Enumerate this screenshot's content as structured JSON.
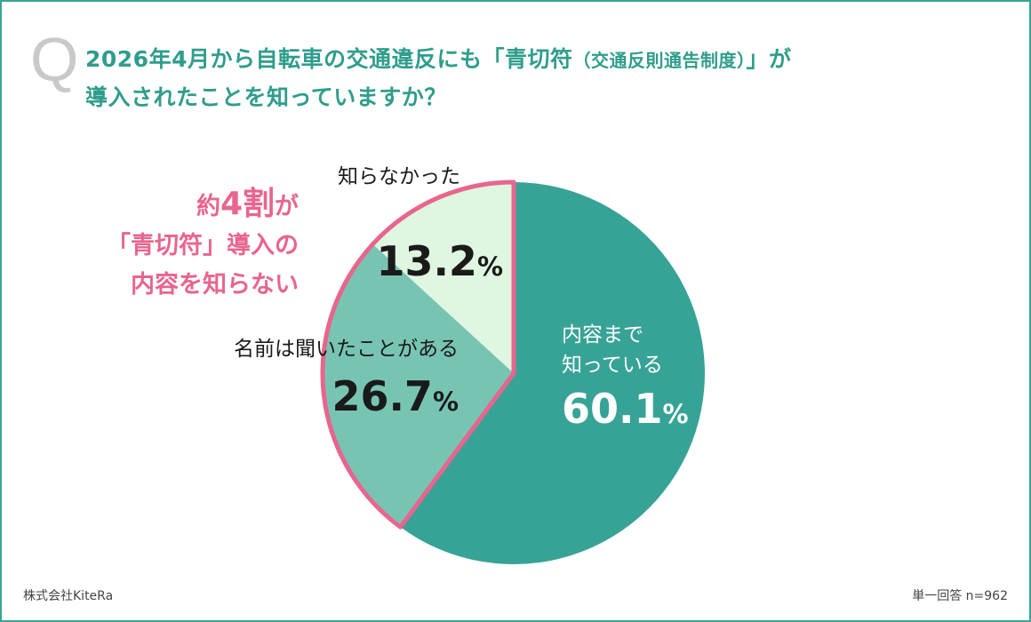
{
  "question": {
    "mark": "Q",
    "line1": "2026年4月から自転車の交通違反にも「青切符",
    "line1_small": "（交通反則通告制度）",
    "line1_end": "」が",
    "line2": "導入されたことを知っていますか？"
  },
  "callout": {
    "line1_pre": "約",
    "line1_big": "4割",
    "line1_post": "が",
    "line2": "「青切符」導入の",
    "line3": "内容を知らない"
  },
  "chart_data": {
    "type": "pie",
    "start_angle_deg": 0,
    "slices": [
      {
        "label_lines": [
          "内容まで",
          "知っている"
        ],
        "value": 60.1,
        "value_text": "60.1",
        "unit": "%",
        "color": "#37a396",
        "label_color": "#ffffff"
      },
      {
        "label_lines": [
          "名前は聞いたことがある"
        ],
        "value": 26.7,
        "value_text": "26.7",
        "unit": "%",
        "color": "#78c4b3",
        "label_color": "#1a1a1a"
      },
      {
        "label_lines": [
          "知らなかった"
        ],
        "value": 13.2,
        "value_text": "13.2",
        "unit": "%",
        "color": "#dff6e0",
        "label_color": "#1a1a1a"
      }
    ],
    "highlight_color": "#e8658d"
  },
  "footer": {
    "company": "株式会社KiteRa",
    "sample": "単一回答 n=962"
  }
}
